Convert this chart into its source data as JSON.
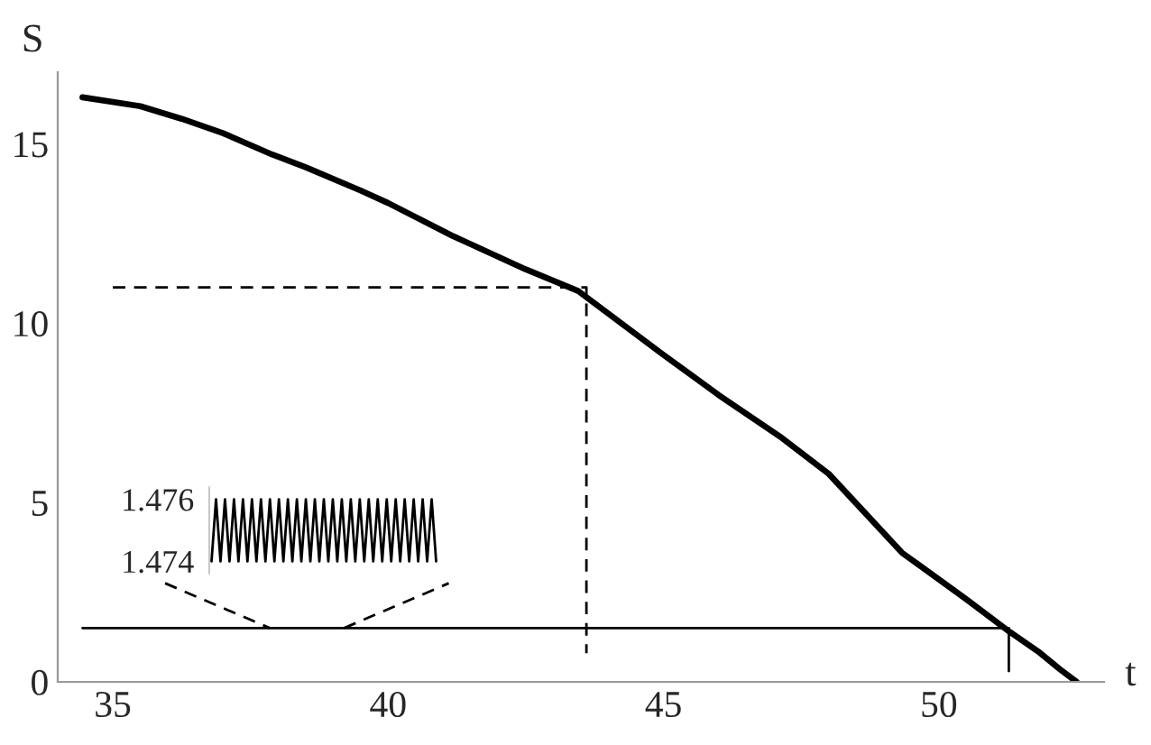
{
  "chart_data": [
    {
      "type": "line",
      "xlabel": "t",
      "ylabel": "S",
      "xlim": [
        34,
        53
      ],
      "ylim": [
        0,
        17
      ],
      "xticks": [
        35,
        40,
        45,
        50
      ],
      "yticks": [
        0,
        5,
        10,
        15
      ],
      "series": [
        {
          "color": "#000000",
          "x": [
            34.45,
            35.5,
            36.25,
            37,
            37.9,
            38.5,
            39.5,
            40,
            41.15,
            42.5,
            43.45,
            44.97,
            46,
            47.15,
            48,
            49.33,
            50.5,
            51.28,
            51.8,
            52.2,
            52.5
          ],
          "values": [
            16.3,
            16.05,
            15.7,
            15.3,
            14.7,
            14.35,
            13.7,
            13.35,
            12.45,
            11.5,
            10.9,
            9.15,
            8.0,
            6.8,
            5.8,
            3.6,
            2.3,
            1.4,
            0.85,
            0.35,
            0
          ]
        },
        {
          "color": "#000000",
          "line_style": "dashed",
          "x": [
            35.95,
            37.85,
            38.5,
            39.2,
            41.1
          ],
          "values": [
            2.75,
            1.5,
            null,
            1.5,
            2.75
          ]
        },
        {
          "color": "#000000",
          "line_style": "dashed",
          "x": [
            35,
            43.6,
            43.6
          ],
          "values": [
            11,
            11,
            0.8
          ]
        },
        {
          "color": "#000000",
          "x": [
            34.45,
            51.27,
            51.27
          ],
          "values": [
            1.5,
            1.5,
            0.3
          ]
        }
      ]
    },
    {
      "type": "line",
      "ylim": [
        1.4736,
        1.4764
      ],
      "yticks": [
        1.474,
        1.476
      ],
      "tick_labels": "y",
      "categories": [
        null,
        null,
        null,
        null,
        null,
        null,
        null,
        null,
        null,
        null,
        null,
        null,
        null,
        null,
        null,
        null,
        null,
        null,
        null,
        null,
        null,
        null,
        null,
        null,
        null,
        null,
        null,
        null,
        null,
        null,
        null,
        null,
        null,
        null,
        null,
        null,
        null,
        null,
        null,
        null,
        null,
        null,
        null,
        null,
        null,
        null,
        null,
        null,
        null,
        null,
        null
      ],
      "series": [
        {
          "color": "#000000",
          "values": [
            1.474,
            1.476,
            1.474,
            1.476,
            1.474,
            1.476,
            1.474,
            1.476,
            1.474,
            1.476,
            1.474,
            1.476,
            1.474,
            1.476,
            1.474,
            1.476,
            1.474,
            1.476,
            1.474,
            1.476,
            1.474,
            1.476,
            1.474,
            1.476,
            1.474,
            1.476,
            1.474,
            1.476,
            1.474,
            1.476,
            1.474,
            1.476,
            1.474,
            1.476,
            1.474,
            1.476,
            1.474,
            1.476,
            1.474,
            1.476,
            1.474,
            1.476,
            1.474,
            1.476,
            1.474,
            1.476,
            1.474,
            1.476,
            1.474,
            1.476,
            1.474
          ]
        }
      ]
    }
  ]
}
